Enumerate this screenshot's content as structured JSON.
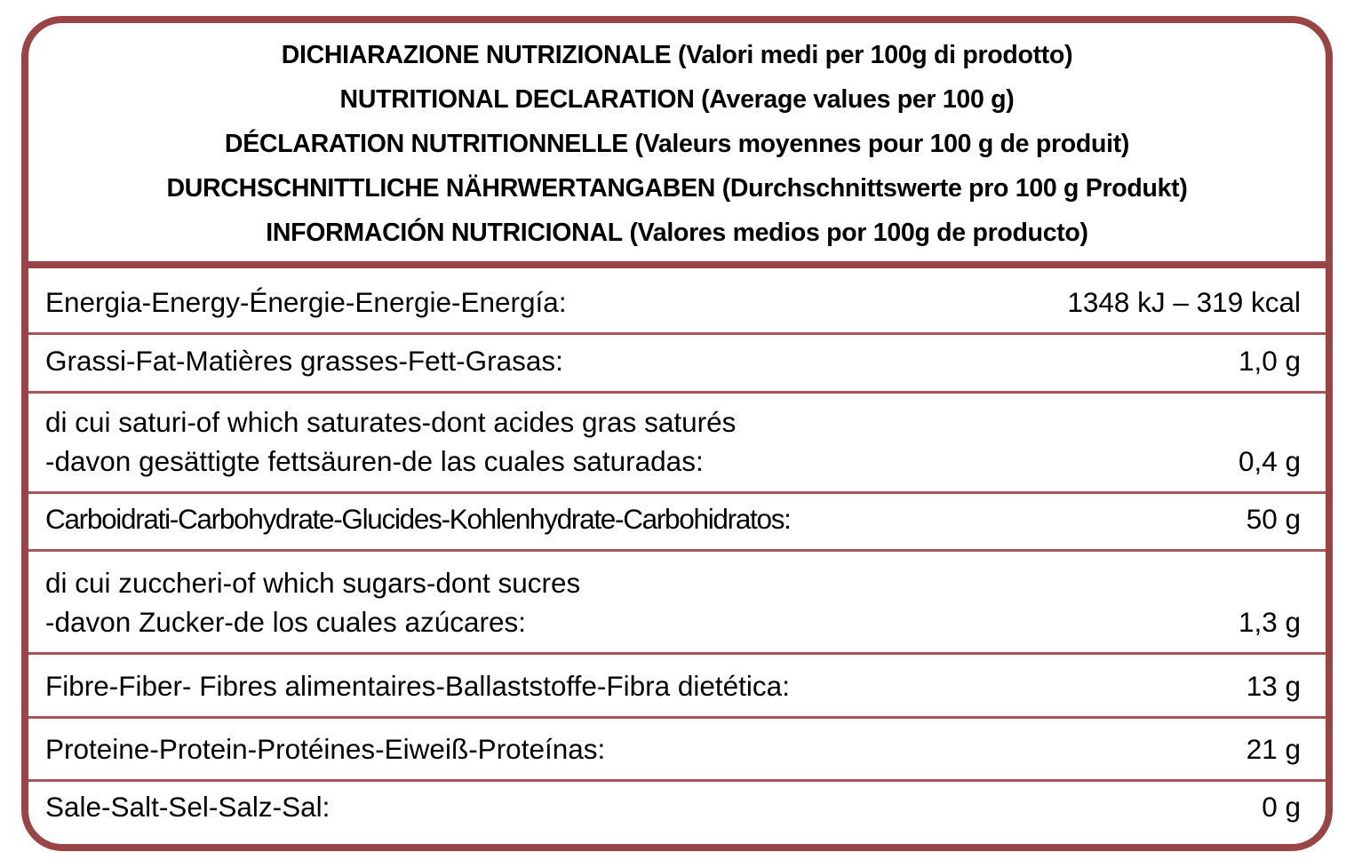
{
  "colors": {
    "border": "#9a4446",
    "text": "#000000",
    "background": "#ffffff"
  },
  "header": [
    {
      "title": "DICHIARAZIONE NUTRIZIONALE",
      "subtitle": "(Valori medi per 100g di prodotto)"
    },
    {
      "title": "NUTRITIONAL DECLARATION",
      "subtitle": "(Average values per 100 g)"
    },
    {
      "title": "DÉCLARATION NUTRITIONNELLE",
      "subtitle": "(Valeurs moyennes pour 100 g de produit)"
    },
    {
      "title": "DURCHSCHNITTLICHE NÄHRWERTANGABEN",
      "subtitle": "(Durchschnittswerte pro 100 g Produkt)"
    },
    {
      "title": "INFORMACIÓN NUTRICIONAL",
      "subtitle": "(Valores medios por 100g de producto)"
    }
  ],
  "rows": [
    {
      "label": "Energia-Energy-Énergie-Energie-Energía:",
      "value": "1348 kJ – 319 kcal"
    },
    {
      "label": "Grassi-Fat-Matières grasses-Fett-Grasas:",
      "value": "1,0 g"
    },
    {
      "label": "di cui saturi-of which saturates-dont acides gras saturés\n-davon gesättigte fettsäuren-de las cuales saturadas:",
      "value": "0,4 g"
    },
    {
      "label": "Carboidrati-Carbohydrate-Glucides-Kohlenhydrate-Carbohidratos:",
      "value": "50 g"
    },
    {
      "label": "di cui zuccheri-of which sugars-dont sucres\n-davon Zucker-de los cuales azúcares:",
      "value": "1,3 g"
    },
    {
      "label": "Fibre-Fiber- Fibres alimentaires-Ballaststoffe-Fibra dietética:",
      "value": "13 g"
    },
    {
      "label": "Proteine-Protein-Protéines-Eiweiß-Proteínas:",
      "value": "21 g"
    },
    {
      "label": "Sale-Salt-Sel-Salz-Sal:",
      "value": "0 g"
    }
  ]
}
